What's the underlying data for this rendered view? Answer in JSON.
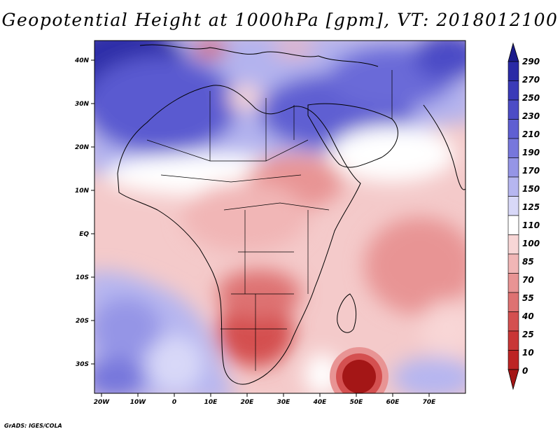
{
  "title": "Geopotential Height at 1000hPa [gpm], VT: 2018012100",
  "footer": "GrADS: IGES/COLA",
  "map": {
    "lon_range": [
      -25,
      80
    ],
    "lat_range": [
      -37,
      45
    ],
    "x_ticks": [
      "20W",
      "10W",
      "0",
      "10E",
      "20E",
      "30E",
      "40E",
      "50E",
      "60E",
      "70E"
    ],
    "y_ticks": [
      "40N",
      "30N",
      "20N",
      "10N",
      "EQ",
      "10S",
      "20S",
      "30S"
    ],
    "regions": [
      {
        "name": "north-atlantic-high",
        "level": "270"
      },
      {
        "name": "south-atlantic",
        "level": "150"
      },
      {
        "name": "southern-africa-low",
        "level": "40"
      },
      {
        "name": "madagascar-south-low",
        "level": "0"
      },
      {
        "name": "arabia-high",
        "level": "210"
      },
      {
        "name": "indian-ocean",
        "level": "85"
      }
    ]
  },
  "colorbar": {
    "levels": [
      "290",
      "270",
      "250",
      "230",
      "210",
      "190",
      "170",
      "150",
      "125",
      "110",
      "100",
      "85",
      "70",
      "55",
      "40",
      "25",
      "10",
      "0"
    ],
    "colors": [
      "#1c1c8c",
      "#2a2aa6",
      "#3a3ab8",
      "#4c4cc6",
      "#5f5fd2",
      "#7777dc",
      "#9595e6",
      "#b6b6f0",
      "#d8d8f8",
      "#ffffff",
      "#f8d6d6",
      "#f1b6b6",
      "#e89494",
      "#de7272",
      "#d45050",
      "#c93636",
      "#bd2424",
      "#a41616"
    ]
  }
}
